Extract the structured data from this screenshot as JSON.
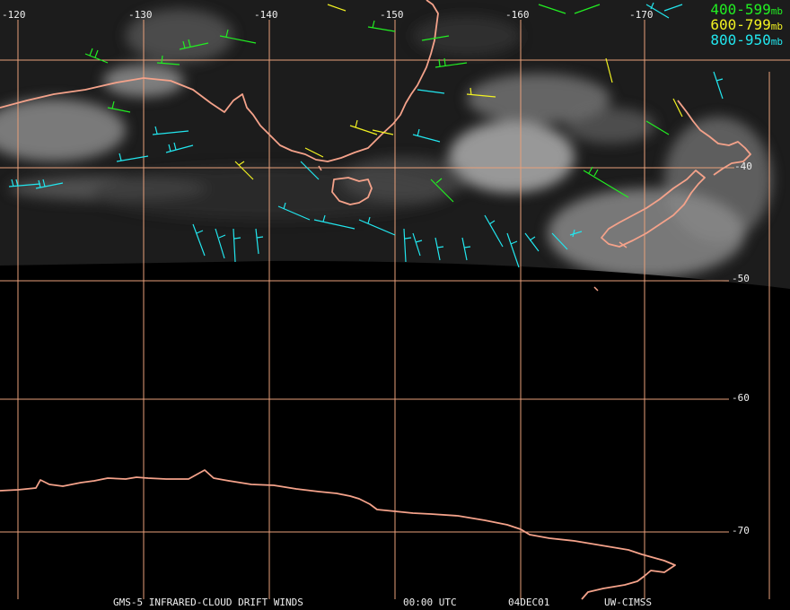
{
  "map": {
    "lon_labels": [
      "-120",
      "-130",
      "-140",
      "-150",
      "-160",
      "-170"
    ],
    "lat_labels": [
      "-40",
      "-50",
      "-60",
      "-70"
    ],
    "colors": {
      "grid": "#e8a07a",
      "coast": "#f4a28a"
    }
  },
  "legend": [
    {
      "range": "400-599",
      "unit": "mb",
      "color": "#22ee22"
    },
    {
      "range": "600-799",
      "unit": "mb",
      "color": "#f2f222"
    },
    {
      "range": "800-950",
      "unit": "mb",
      "color": "#22e6ee"
    }
  ],
  "footer": {
    "product": "GMS-5 INFRARED-CLOUD DRIFT WINDS",
    "time": "00:00 UTC",
    "date": "04DEC01",
    "source": "UW-CIMSS"
  }
}
